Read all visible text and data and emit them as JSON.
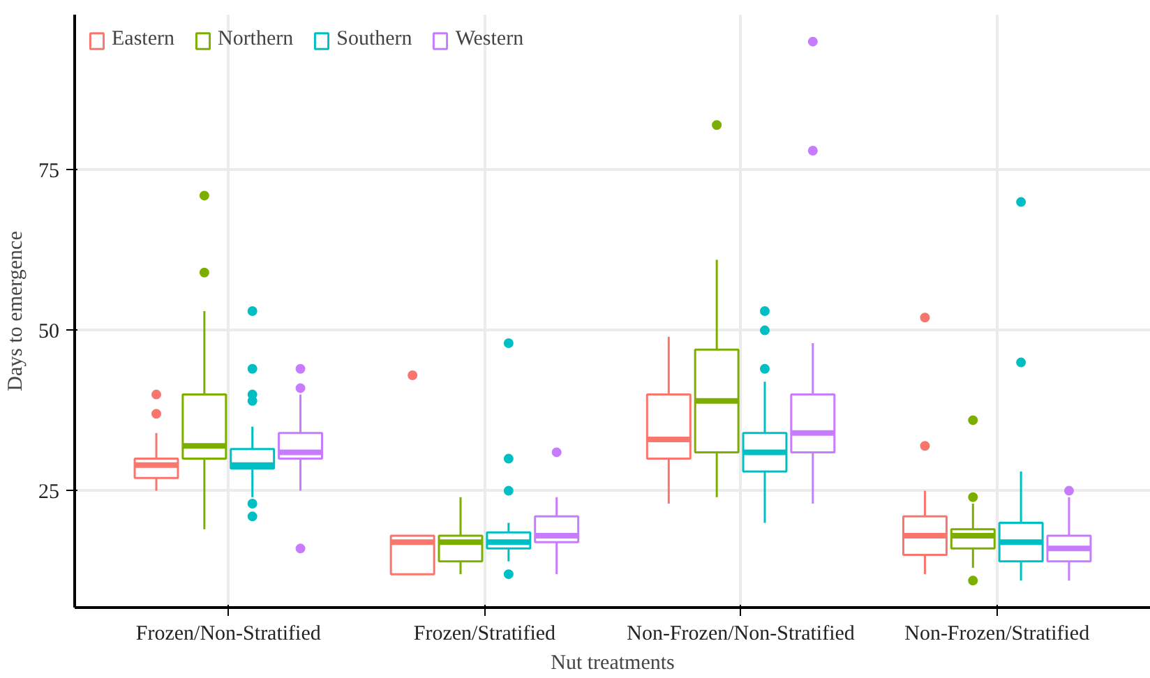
{
  "chart_data": {
    "type": "box",
    "xlabel": "Nut treatments",
    "ylabel": "Days to emergence",
    "categories": [
      "Frozen/Non-Stratified",
      "Frozen/Stratified",
      "Non-Frozen/Non-Stratified",
      "Non-Frozen/Stratified"
    ],
    "ylim": [
      6.8,
      99.2
    ],
    "yticks": [
      25,
      50,
      75
    ],
    "grid": true,
    "legend": "top left",
    "series": [
      {
        "name": "Eastern",
        "color": "#f8766d",
        "boxes": [
          {
            "low": 25,
            "q1": 27,
            "median": 29,
            "q3": 30,
            "high": 34,
            "outliers": [
              40,
              37
            ]
          },
          {
            "low": 12,
            "q1": 12,
            "median": 17,
            "q3": 18,
            "high": 18,
            "outliers": [
              43
            ]
          },
          {
            "low": 23,
            "q1": 30,
            "median": 33,
            "q3": 40,
            "high": 49
          },
          {
            "low": 12,
            "q1": 15,
            "median": 18,
            "q3": 21,
            "high": 25,
            "outliers": [
              52,
              32
            ]
          }
        ]
      },
      {
        "name": "Northern",
        "color": "#7cae00",
        "boxes": [
          {
            "low": 19,
            "q1": 30,
            "median": 32,
            "q3": 40,
            "high": 53,
            "outliers": [
              71,
              59
            ]
          },
          {
            "low": 12,
            "q1": 14,
            "median": 17,
            "q3": 18,
            "high": 24
          },
          {
            "low": 24,
            "q1": 31,
            "median": 39,
            "q3": 47,
            "high": 61,
            "outliers": [
              82
            ]
          },
          {
            "low": 13,
            "q1": 16,
            "median": 18,
            "q3": 19,
            "high": 23,
            "outliers": [
              36,
              24,
              11
            ]
          }
        ]
      },
      {
        "name": "Southern",
        "color": "#00bfc4",
        "boxes": [
          {
            "low": 24,
            "q1": 28.5,
            "median": 29,
            "q3": 31.5,
            "high": 35,
            "outliers": [
              53,
              44,
              40,
              39,
              23,
              21
            ]
          },
          {
            "low": 14,
            "q1": 16,
            "median": 17,
            "q3": 18.5,
            "high": 20,
            "outliers": [
              48,
              30,
              25,
              12
            ]
          },
          {
            "low": 20,
            "q1": 28,
            "median": 31,
            "q3": 34,
            "high": 42,
            "outliers": [
              53,
              50,
              44
            ]
          },
          {
            "low": 11,
            "q1": 14,
            "median": 17,
            "q3": 20,
            "high": 28,
            "outliers": [
              70,
              45
            ]
          }
        ]
      },
      {
        "name": "Western",
        "color": "#c77cff",
        "boxes": [
          {
            "low": 25,
            "q1": 30,
            "median": 31,
            "q3": 34,
            "high": 40,
            "outliers": [
              44,
              41,
              16
            ]
          },
          {
            "low": 12,
            "q1": 17,
            "median": 18,
            "q3": 21,
            "high": 24,
            "outliers": [
              31
            ]
          },
          {
            "low": 23,
            "q1": 31,
            "median": 34,
            "q3": 40,
            "high": 48,
            "outliers": [
              95,
              78
            ]
          },
          {
            "low": 11,
            "q1": 14,
            "median": 16,
            "q3": 18,
            "high": 24,
            "outliers": [
              25
            ]
          }
        ]
      }
    ]
  }
}
